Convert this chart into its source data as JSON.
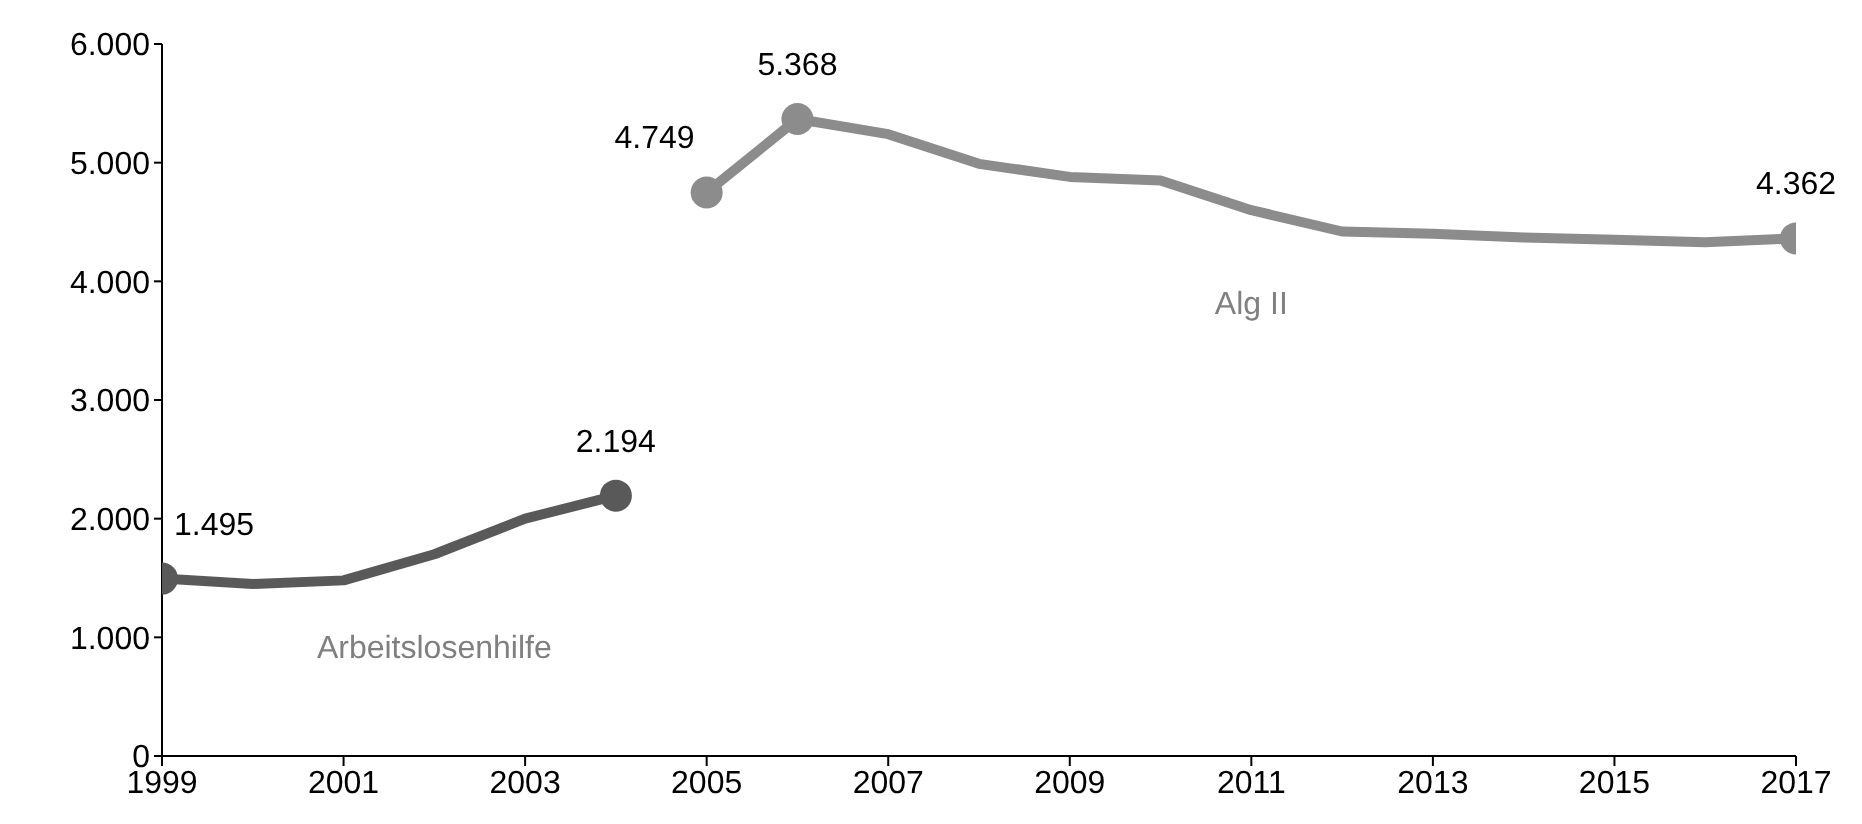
{
  "chart_data": {
    "type": "line",
    "x": [
      1999,
      2000,
      2001,
      2002,
      2003,
      2004,
      2005,
      2006,
      2007,
      2008,
      2009,
      2010,
      2011,
      2012,
      2013,
      2014,
      2015,
      2016,
      2017
    ],
    "series": [
      {
        "name": "Arbeitslosenhilfe",
        "color": "#595959",
        "values": [
          1495,
          1450,
          1480,
          1700,
          2000,
          2194,
          null,
          null,
          null,
          null,
          null,
          null,
          null,
          null,
          null,
          null,
          null,
          null,
          null
        ],
        "value_labels": [
          "1.495",
          null,
          null,
          null,
          null,
          "2.194",
          null,
          null,
          null,
          null,
          null,
          null,
          null,
          null,
          null,
          null,
          null,
          null,
          null
        ]
      },
      {
        "name": "Alg II",
        "color": "#8c8c8c",
        "values": [
          null,
          null,
          null,
          null,
          null,
          null,
          4749,
          5368,
          5240,
          4990,
          4880,
          4850,
          4600,
          4420,
          4400,
          4370,
          4350,
          4330,
          4362
        ],
        "value_labels": [
          null,
          null,
          null,
          null,
          null,
          null,
          "4.749",
          "5.368",
          null,
          null,
          null,
          null,
          null,
          null,
          null,
          null,
          null,
          null,
          "4.362"
        ]
      }
    ],
    "xlim": [
      1999,
      2017
    ],
    "xticks": [
      1999,
      2001,
      2003,
      2005,
      2007,
      2009,
      2011,
      2013,
      2015,
      2017
    ],
    "ylim": [
      0,
      6000
    ],
    "yticks": [
      0,
      {
        "value": 1000,
        "label": "1.000"
      },
      {
        "value": 2000,
        "label": "2.000"
      },
      {
        "value": 3000,
        "label": "3.000"
      },
      {
        "value": 4000,
        "label": "4.000"
      },
      {
        "value": 5000,
        "label": "5.000"
      },
      {
        "value": 6000,
        "label": "6.000"
      }
    ],
    "grid": false,
    "legend": false,
    "line_style": "solid"
  }
}
